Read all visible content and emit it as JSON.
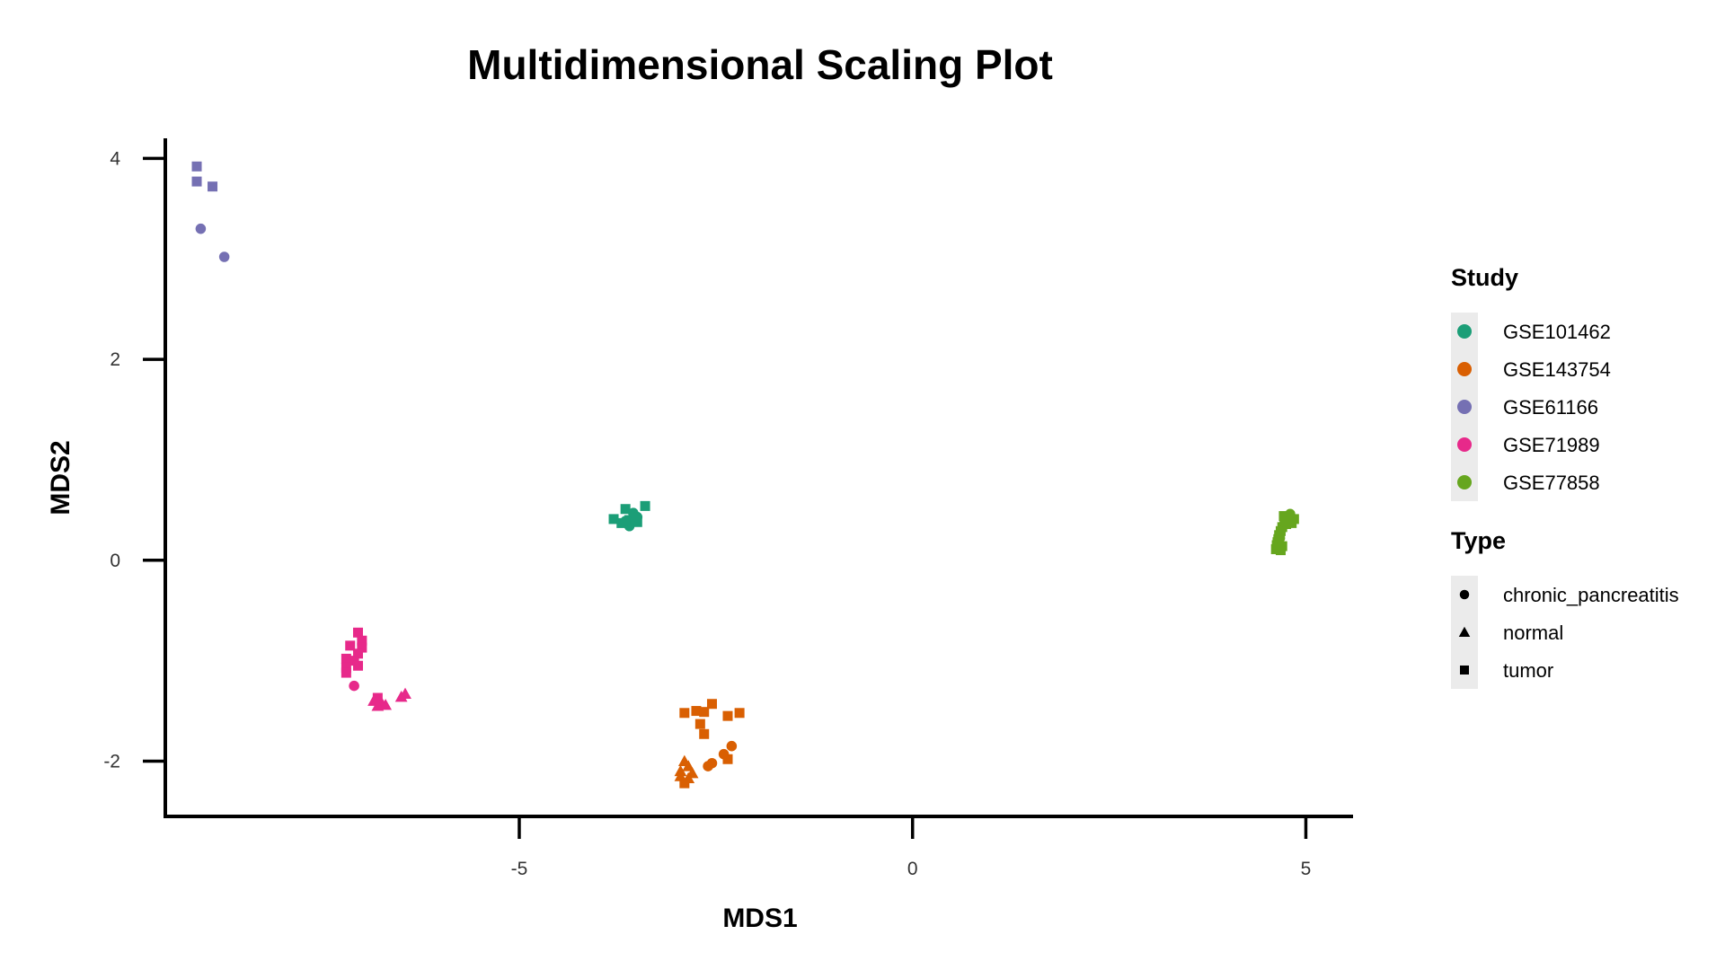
{
  "chart_data": {
    "type": "scatter",
    "title": "Multidimensional Scaling Plot",
    "xlabel": "MDS1",
    "ylabel": "MDS2",
    "xlim": [
      -9.5,
      5.6
    ],
    "ylim": [
      -2.55,
      4.2
    ],
    "xticks": [
      -5,
      0,
      5
    ],
    "yticks": [
      -2,
      0,
      2,
      4
    ],
    "grid": false,
    "legend_position": "right",
    "colors": {
      "GSE101462": "#1b9e77",
      "GSE143754": "#d95f02",
      "GSE61166": "#7570b3",
      "GSE71989": "#e7298a",
      "GSE77858": "#66a61e"
    },
    "legend": {
      "study_title": "Study",
      "type_title": "Type",
      "studies": [
        "GSE101462",
        "GSE143754",
        "GSE61166",
        "GSE71989",
        "GSE77858"
      ],
      "types": [
        "chronic_pancreatitis",
        "normal",
        "tumor"
      ]
    },
    "series": [
      {
        "name": "GSE61166",
        "type": "tumor",
        "points": [
          [
            -9.1,
            3.92
          ],
          [
            -9.1,
            3.77
          ],
          [
            -8.9,
            3.72
          ]
        ]
      },
      {
        "name": "GSE61166",
        "type": "chronic_pancreatitis",
        "points": [
          [
            -9.05,
            3.3
          ],
          [
            -8.75,
            3.02
          ]
        ]
      },
      {
        "name": "GSE101462",
        "type": "tumor",
        "points": [
          [
            -3.8,
            0.41
          ],
          [
            -3.65,
            0.51
          ],
          [
            -3.4,
            0.54
          ],
          [
            -3.6,
            0.4
          ],
          [
            -3.5,
            0.38
          ],
          [
            -3.7,
            0.37
          ]
        ]
      },
      {
        "name": "GSE101462",
        "type": "chronic_pancreatitis",
        "points": [
          [
            -3.55,
            0.47
          ],
          [
            -3.6,
            0.34
          ],
          [
            -3.5,
            0.43
          ],
          [
            -3.65,
            0.39
          ]
        ]
      },
      {
        "name": "GSE77858",
        "type": "tumor",
        "points": [
          [
            4.72,
            0.44
          ],
          [
            4.78,
            0.43
          ],
          [
            4.85,
            0.41
          ],
          [
            4.82,
            0.37
          ],
          [
            4.75,
            0.36
          ],
          [
            4.7,
            0.33
          ],
          [
            4.68,
            0.29
          ],
          [
            4.66,
            0.25
          ],
          [
            4.65,
            0.21
          ],
          [
            4.64,
            0.18
          ],
          [
            4.63,
            0.15
          ],
          [
            4.65,
            0.12
          ],
          [
            4.68,
            0.1
          ],
          [
            4.62,
            0.11
          ],
          [
            4.7,
            0.14
          ]
        ]
      },
      {
        "name": "GSE77858",
        "type": "chronic_pancreatitis",
        "points": [
          [
            4.8,
            0.46
          ],
          [
            4.73,
            0.38
          ],
          [
            4.67,
            0.22
          ]
        ]
      },
      {
        "name": "GSE71989",
        "type": "tumor",
        "points": [
          [
            -7.05,
            -0.72
          ],
          [
            -7.0,
            -0.8
          ],
          [
            -7.0,
            -0.87
          ],
          [
            -7.15,
            -0.85
          ],
          [
            -7.05,
            -0.93
          ],
          [
            -7.1,
            -1.0
          ],
          [
            -7.2,
            -0.98
          ],
          [
            -7.05,
            -1.05
          ],
          [
            -7.2,
            -1.07
          ],
          [
            -7.2,
            -1.12
          ],
          [
            -6.8,
            -1.37
          ]
        ]
      },
      {
        "name": "GSE71989",
        "type": "chronic_pancreatitis",
        "points": [
          [
            -7.1,
            -1.25
          ]
        ]
      },
      {
        "name": "GSE71989",
        "type": "normal",
        "points": [
          [
            -6.85,
            -1.4
          ],
          [
            -6.75,
            -1.42
          ],
          [
            -6.7,
            -1.44
          ],
          [
            -6.8,
            -1.45
          ],
          [
            -6.5,
            -1.36
          ],
          [
            -6.45,
            -1.33
          ]
        ]
      },
      {
        "name": "GSE143754",
        "type": "tumor",
        "points": [
          [
            -2.55,
            -1.43
          ],
          [
            -2.75,
            -1.5
          ],
          [
            -2.9,
            -1.52
          ],
          [
            -2.65,
            -1.51
          ],
          [
            -2.35,
            -1.55
          ],
          [
            -2.2,
            -1.52
          ],
          [
            -2.7,
            -1.63
          ],
          [
            -2.65,
            -1.73
          ],
          [
            -2.35,
            -1.98
          ],
          [
            -2.9,
            -2.22
          ]
        ]
      },
      {
        "name": "GSE143754",
        "type": "chronic_pancreatitis",
        "points": [
          [
            -2.3,
            -1.85
          ],
          [
            -2.4,
            -1.93
          ],
          [
            -2.55,
            -2.02
          ],
          [
            -2.6,
            -2.05
          ]
        ]
      },
      {
        "name": "GSE143754",
        "type": "normal",
        "points": [
          [
            -2.9,
            -2.0
          ],
          [
            -2.85,
            -2.05
          ],
          [
            -2.95,
            -2.1
          ],
          [
            -2.8,
            -2.12
          ],
          [
            -2.95,
            -2.15
          ],
          [
            -2.85,
            -2.17
          ]
        ]
      }
    ]
  }
}
